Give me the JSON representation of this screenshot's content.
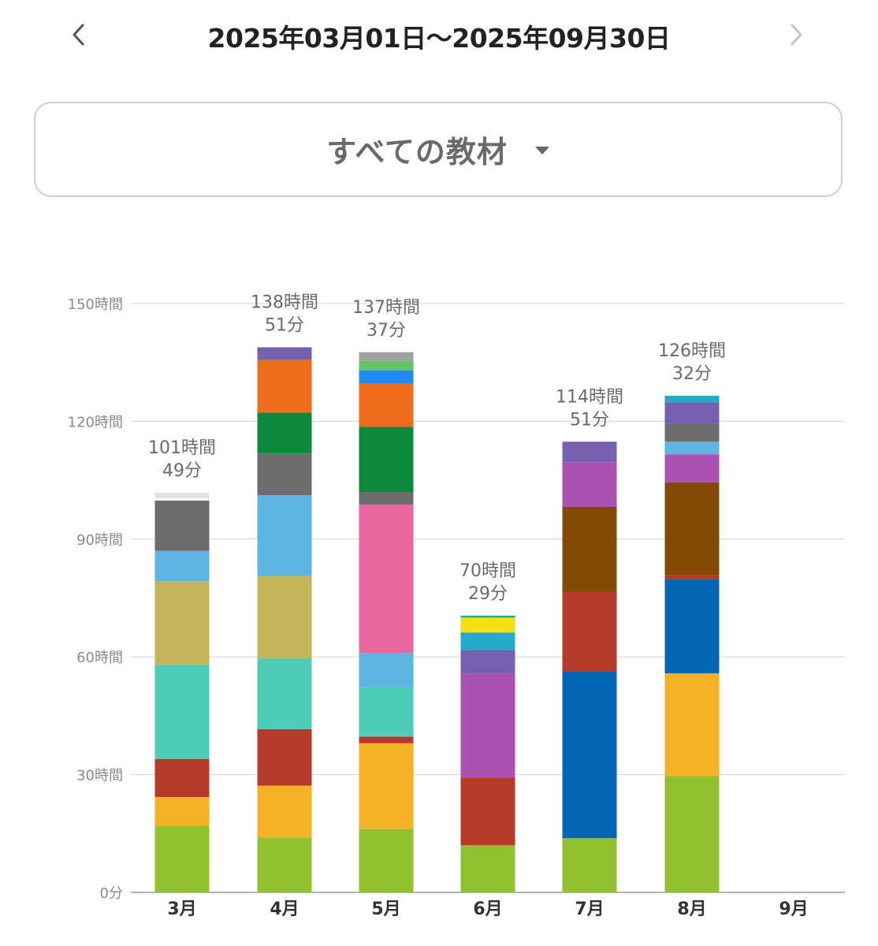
{
  "header": {
    "period": "2025年03月01日〜2025年09月30日",
    "prev_icon": "chevron-left-icon",
    "next_icon": "chevron-right-icon"
  },
  "filter": {
    "label": "すべての教材",
    "icon": "caret-down-icon"
  },
  "chart_data": {
    "type": "bar",
    "stacked": true,
    "categories": [
      "3月",
      "4月",
      "5月",
      "6月",
      "7月",
      "8月",
      "9月"
    ],
    "y_ticks": [
      "0分",
      "30時間",
      "60時間",
      "90時間",
      "120時間",
      "150時間"
    ],
    "ylim": [
      0,
      150
    ],
    "grid": true,
    "totals": [
      [
        "101時間",
        "49分"
      ],
      [
        "138時間",
        "51分"
      ],
      [
        "137時間",
        "37分"
      ],
      [
        "70時間",
        "29分"
      ],
      [
        "114時間",
        "51分"
      ],
      [
        "126時間",
        "32分"
      ],
      null
    ],
    "bars": [
      [
        {
          "value": 17.0,
          "color": "#92c12f"
        },
        {
          "value": 7.3,
          "color": "#f4b223"
        },
        {
          "value": 9.7,
          "color": "#b53a29"
        },
        {
          "value": 24.0,
          "color": "#4ecdb6"
        },
        {
          "value": 21.3,
          "color": "#c4b45a"
        },
        {
          "value": 7.7,
          "color": "#5cb5e1"
        },
        {
          "value": 12.8,
          "color": "#6d6d6d"
        },
        {
          "value": 0.6,
          "color": "#ffffff"
        },
        {
          "value": 1.4,
          "color": "#e2e2e2"
        }
      ],
      [
        {
          "value": 14.0,
          "color": "#92c12f"
        },
        {
          "value": 13.2,
          "color": "#f4b223"
        },
        {
          "value": 14.4,
          "color": "#b53a29"
        },
        {
          "value": 18.0,
          "color": "#4ecdb6"
        },
        {
          "value": 21.0,
          "color": "#c4b45a"
        },
        {
          "value": 20.6,
          "color": "#5cb5e1"
        },
        {
          "value": 10.6,
          "color": "#6d6d6d"
        },
        {
          "value": 10.4,
          "color": "#0b8a3b"
        },
        {
          "value": 13.4,
          "color": "#ef6c1d"
        },
        {
          "value": 3.25,
          "color": "#7661b0"
        }
      ],
      [
        {
          "value": 16.2,
          "color": "#92c12f"
        },
        {
          "value": 21.8,
          "color": "#f4b223"
        },
        {
          "value": 1.7,
          "color": "#b53a29"
        },
        {
          "value": 12.6,
          "color": "#4ecdb6"
        },
        {
          "value": 8.7,
          "color": "#5cb5e1"
        },
        {
          "value": 37.8,
          "color": "#e8679f"
        },
        {
          "value": 3.2,
          "color": "#6d6d6d"
        },
        {
          "value": 16.6,
          "color": "#0b8a3b"
        },
        {
          "value": 11.0,
          "color": "#ef6c1d"
        },
        {
          "value": 3.4,
          "color": "#2289f0"
        },
        {
          "value": 2.4,
          "color": "#62c462"
        },
        {
          "value": 2.2,
          "color": "#a0a0a0"
        }
      ],
      [
        {
          "value": 12.0,
          "color": "#92c12f"
        },
        {
          "value": 17.3,
          "color": "#b53a29"
        },
        {
          "value": 26.4,
          "color": "#ab51b1"
        },
        {
          "value": 6.1,
          "color": "#7661b0"
        },
        {
          "value": 4.4,
          "color": "#25abc9"
        },
        {
          "value": 3.8,
          "color": "#f3e013"
        },
        {
          "value": 0.5,
          "color": "#2aa59a"
        }
      ],
      [
        {
          "value": 13.8,
          "color": "#92c12f"
        },
        {
          "value": 42.6,
          "color": "#0066b5"
        },
        {
          "value": 20.2,
          "color": "#b53a29"
        },
        {
          "value": 21.6,
          "color": "#834a02"
        },
        {
          "value": 11.4,
          "color": "#ab51b1"
        },
        {
          "value": 5.2,
          "color": "#7661b0"
        }
      ],
      [
        {
          "value": 29.6,
          "color": "#92c12f"
        },
        {
          "value": 26.2,
          "color": "#f4b223"
        },
        {
          "value": 24.0,
          "color": "#0066b5"
        },
        {
          "value": 1.1,
          "color": "#b53a29"
        },
        {
          "value": 23.5,
          "color": "#834a02"
        },
        {
          "value": 7.2,
          "color": "#ab51b1"
        },
        {
          "value": 3.2,
          "color": "#5cb5e1"
        },
        {
          "value": 4.6,
          "color": "#6d6d6d"
        },
        {
          "value": 5.4,
          "color": "#7661b0"
        },
        {
          "value": 1.7,
          "color": "#25abc9"
        }
      ],
      []
    ]
  }
}
